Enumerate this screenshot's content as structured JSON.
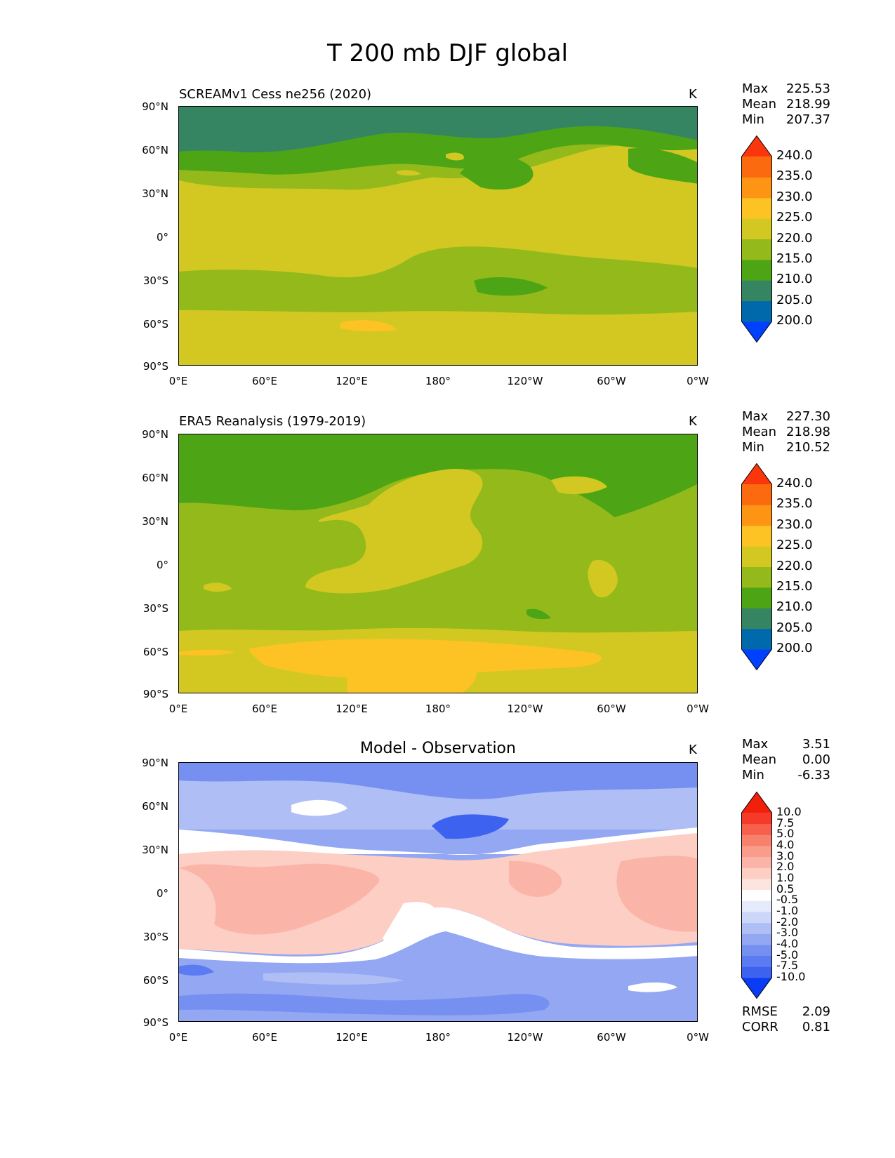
{
  "figure_title": "T 200 mb DJF global",
  "panels": [
    {
      "title": "SCREAMv1 Cess ne256 (2020)",
      "units": "K",
      "stats": {
        "max_label": "Max",
        "max": "225.53",
        "mean_label": "Mean",
        "mean": "218.99",
        "min_label": "Min",
        "min": "207.37"
      }
    },
    {
      "title": "ERA5 Reanalysis (1979-2019)",
      "units": "K",
      "stats": {
        "max_label": "Max",
        "max": "227.30",
        "mean_label": "Mean",
        "mean": "218.98",
        "min_label": "Min",
        "min": "210.52"
      }
    },
    {
      "title": "Model - Observation",
      "units": "K",
      "stats": {
        "max_label": "Max",
        "max": "3.51",
        "mean_label": "Mean",
        "mean": "0.00",
        "min_label": "Min",
        "min": "-6.33"
      },
      "scores": {
        "rmse_label": "RMSE",
        "rmse": "2.09",
        "corr_label": "CORR",
        "corr": "0.81"
      }
    }
  ],
  "lat_ticks": [
    "90°N",
    "60°N",
    "30°N",
    "0°",
    "30°S",
    "60°S",
    "90°S"
  ],
  "lon_ticks": [
    "0°E",
    "60°E",
    "120°E",
    "180°",
    "120°W",
    "60°W",
    "0°W"
  ],
  "colorbars": {
    "temperature": {
      "levels": [
        "240.0",
        "235.0",
        "230.0",
        "225.0",
        "220.0",
        "215.0",
        "210.0",
        "205.0",
        "200.0"
      ],
      "colors": [
        "#0040ff",
        "#0069ab",
        "#358563",
        "#4da516",
        "#93ba1a",
        "#d3c822",
        "#fdc223",
        "#fd9414",
        "#fc6a10",
        "#fb360c"
      ]
    },
    "difference": {
      "levels": [
        "10.0",
        "7.5",
        "5.0",
        "4.0",
        "3.0",
        "2.0",
        "1.0",
        "0.5",
        "-0.5",
        "-1.0",
        "-2.0",
        "-3.0",
        "-4.0",
        "-5.0",
        "-7.5",
        "-10.0"
      ],
      "colors": [
        "#0a3cf5",
        "#3e62f0",
        "#5a7bf2",
        "#7690f2",
        "#93a7f3",
        "#afbef5",
        "#ccd6f8",
        "#e6ebfb",
        "#ffffff",
        "#fde4df",
        "#fccec4",
        "#fbb5a8",
        "#fa9c8b",
        "#f8816d",
        "#f6604d",
        "#f43a28",
        "#f21f0a"
      ]
    }
  }
}
